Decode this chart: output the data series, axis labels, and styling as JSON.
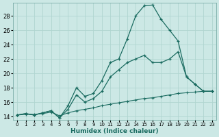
{
  "xlabel": "Humidex (Indice chaleur)",
  "bg_color": "#cce8e5",
  "grid_color": "#b0d5d0",
  "line_color": "#1a6b60",
  "xlim": [
    -0.5,
    23.5
  ],
  "ylim": [
    13.5,
    29.8
  ],
  "xticks": [
    0,
    1,
    2,
    3,
    4,
    5,
    6,
    7,
    8,
    9,
    10,
    11,
    12,
    13,
    14,
    15,
    16,
    17,
    18,
    19,
    20,
    21,
    22,
    23
  ],
  "yticks": [
    14,
    16,
    18,
    20,
    22,
    24,
    26,
    28
  ],
  "curve1_x": [
    0,
    1,
    2,
    3,
    4,
    5,
    6,
    7,
    8,
    9,
    10,
    11,
    12,
    13,
    14,
    15,
    16,
    17,
    18,
    19,
    20,
    21,
    22,
    23
  ],
  "curve1_y": [
    14.2,
    14.4,
    14.2,
    14.5,
    14.8,
    13.8,
    15.5,
    18.0,
    16.8,
    17.2,
    19.0,
    21.5,
    22.0,
    24.8,
    28.0,
    29.4,
    29.5,
    27.5,
    26.0,
    24.5,
    19.5,
    18.5,
    17.5,
    17.5
  ],
  "curve2_x": [
    0,
    1,
    2,
    3,
    4,
    5,
    6,
    7,
    8,
    9,
    10,
    11,
    12,
    13,
    14,
    15,
    16,
    17,
    18,
    19,
    20,
    21,
    22,
    23
  ],
  "curve2_y": [
    14.2,
    14.4,
    14.2,
    14.5,
    14.8,
    13.8,
    15.0,
    17.0,
    16.0,
    16.5,
    17.5,
    19.5,
    20.5,
    21.5,
    22.0,
    22.5,
    21.5,
    21.5,
    22.0,
    23.0,
    19.5,
    18.5,
    17.5,
    17.5
  ],
  "curve3_x": [
    0,
    1,
    2,
    3,
    4,
    5,
    6,
    7,
    8,
    9,
    10,
    11,
    12,
    13,
    14,
    15,
    16,
    17,
    18,
    19,
    20,
    21,
    22,
    23
  ],
  "curve3_y": [
    14.2,
    14.3,
    14.3,
    14.4,
    14.6,
    14.1,
    14.5,
    14.8,
    15.0,
    15.2,
    15.5,
    15.7,
    15.9,
    16.1,
    16.3,
    16.5,
    16.6,
    16.8,
    17.0,
    17.2,
    17.3,
    17.4,
    17.5,
    17.5
  ]
}
